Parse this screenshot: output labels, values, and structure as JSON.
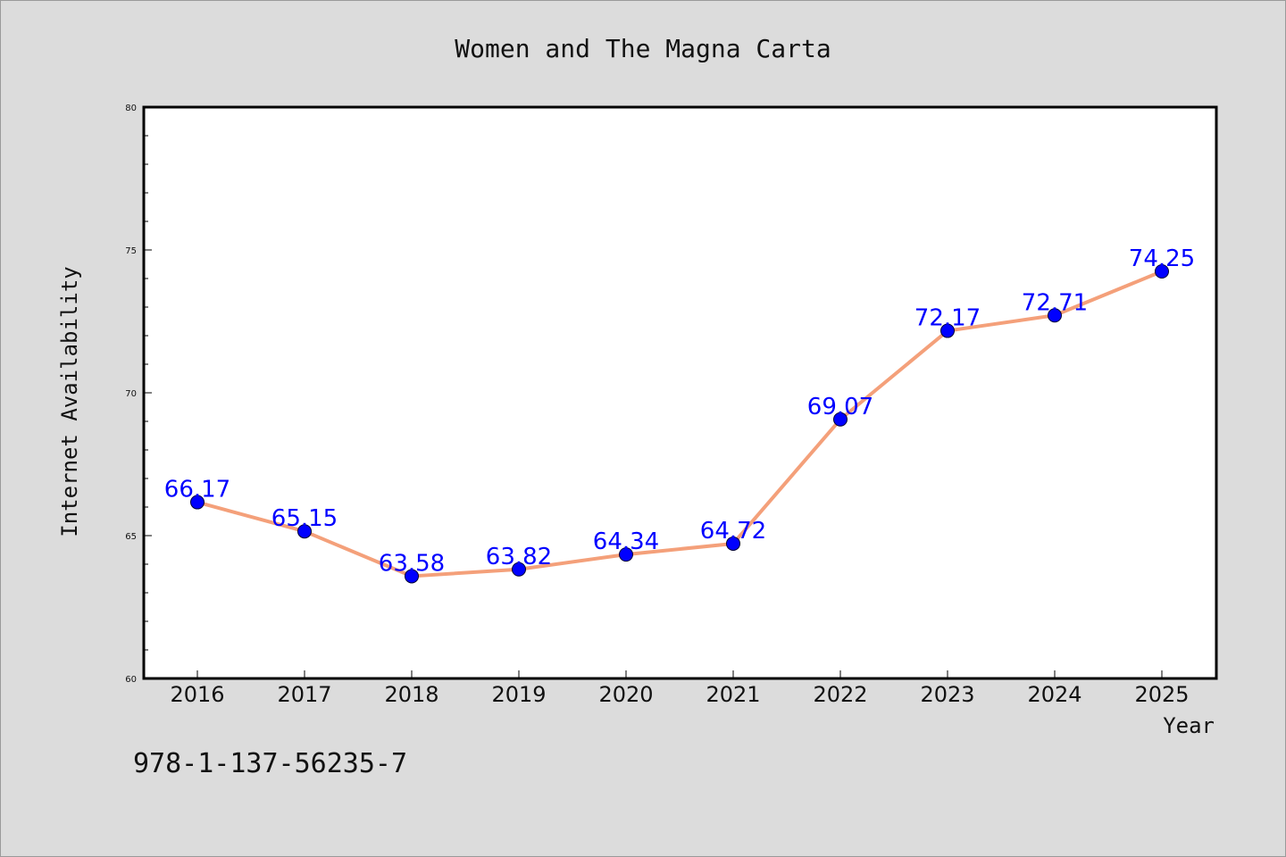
{
  "chart_data": {
    "type": "line",
    "title": "Women and The Magna Carta",
    "xlabel": "Year",
    "ylabel": "Internet Availability",
    "categories": [
      "2016",
      "2017",
      "2018",
      "2019",
      "2020",
      "2021",
      "2022",
      "2023",
      "2024",
      "2025"
    ],
    "values": [
      66.17,
      65.15,
      63.58,
      63.82,
      64.34,
      64.72,
      69.07,
      72.17,
      72.71,
      74.25
    ],
    "data_labels": [
      "66.17",
      "65.15",
      "63.58",
      "63.82",
      "64.34",
      "64.72",
      "69.07",
      "72.17",
      "72.71",
      "74.25"
    ],
    "ylim": [
      60,
      80
    ],
    "yticks": [
      "60",
      "65",
      "70",
      "75",
      "80"
    ],
    "grid": false,
    "line_color": "#f4a07a",
    "marker_color": "#0000ff",
    "label_color": "#0000ff"
  },
  "annotation": {
    "isbn": "978-1-137-56235-7"
  }
}
